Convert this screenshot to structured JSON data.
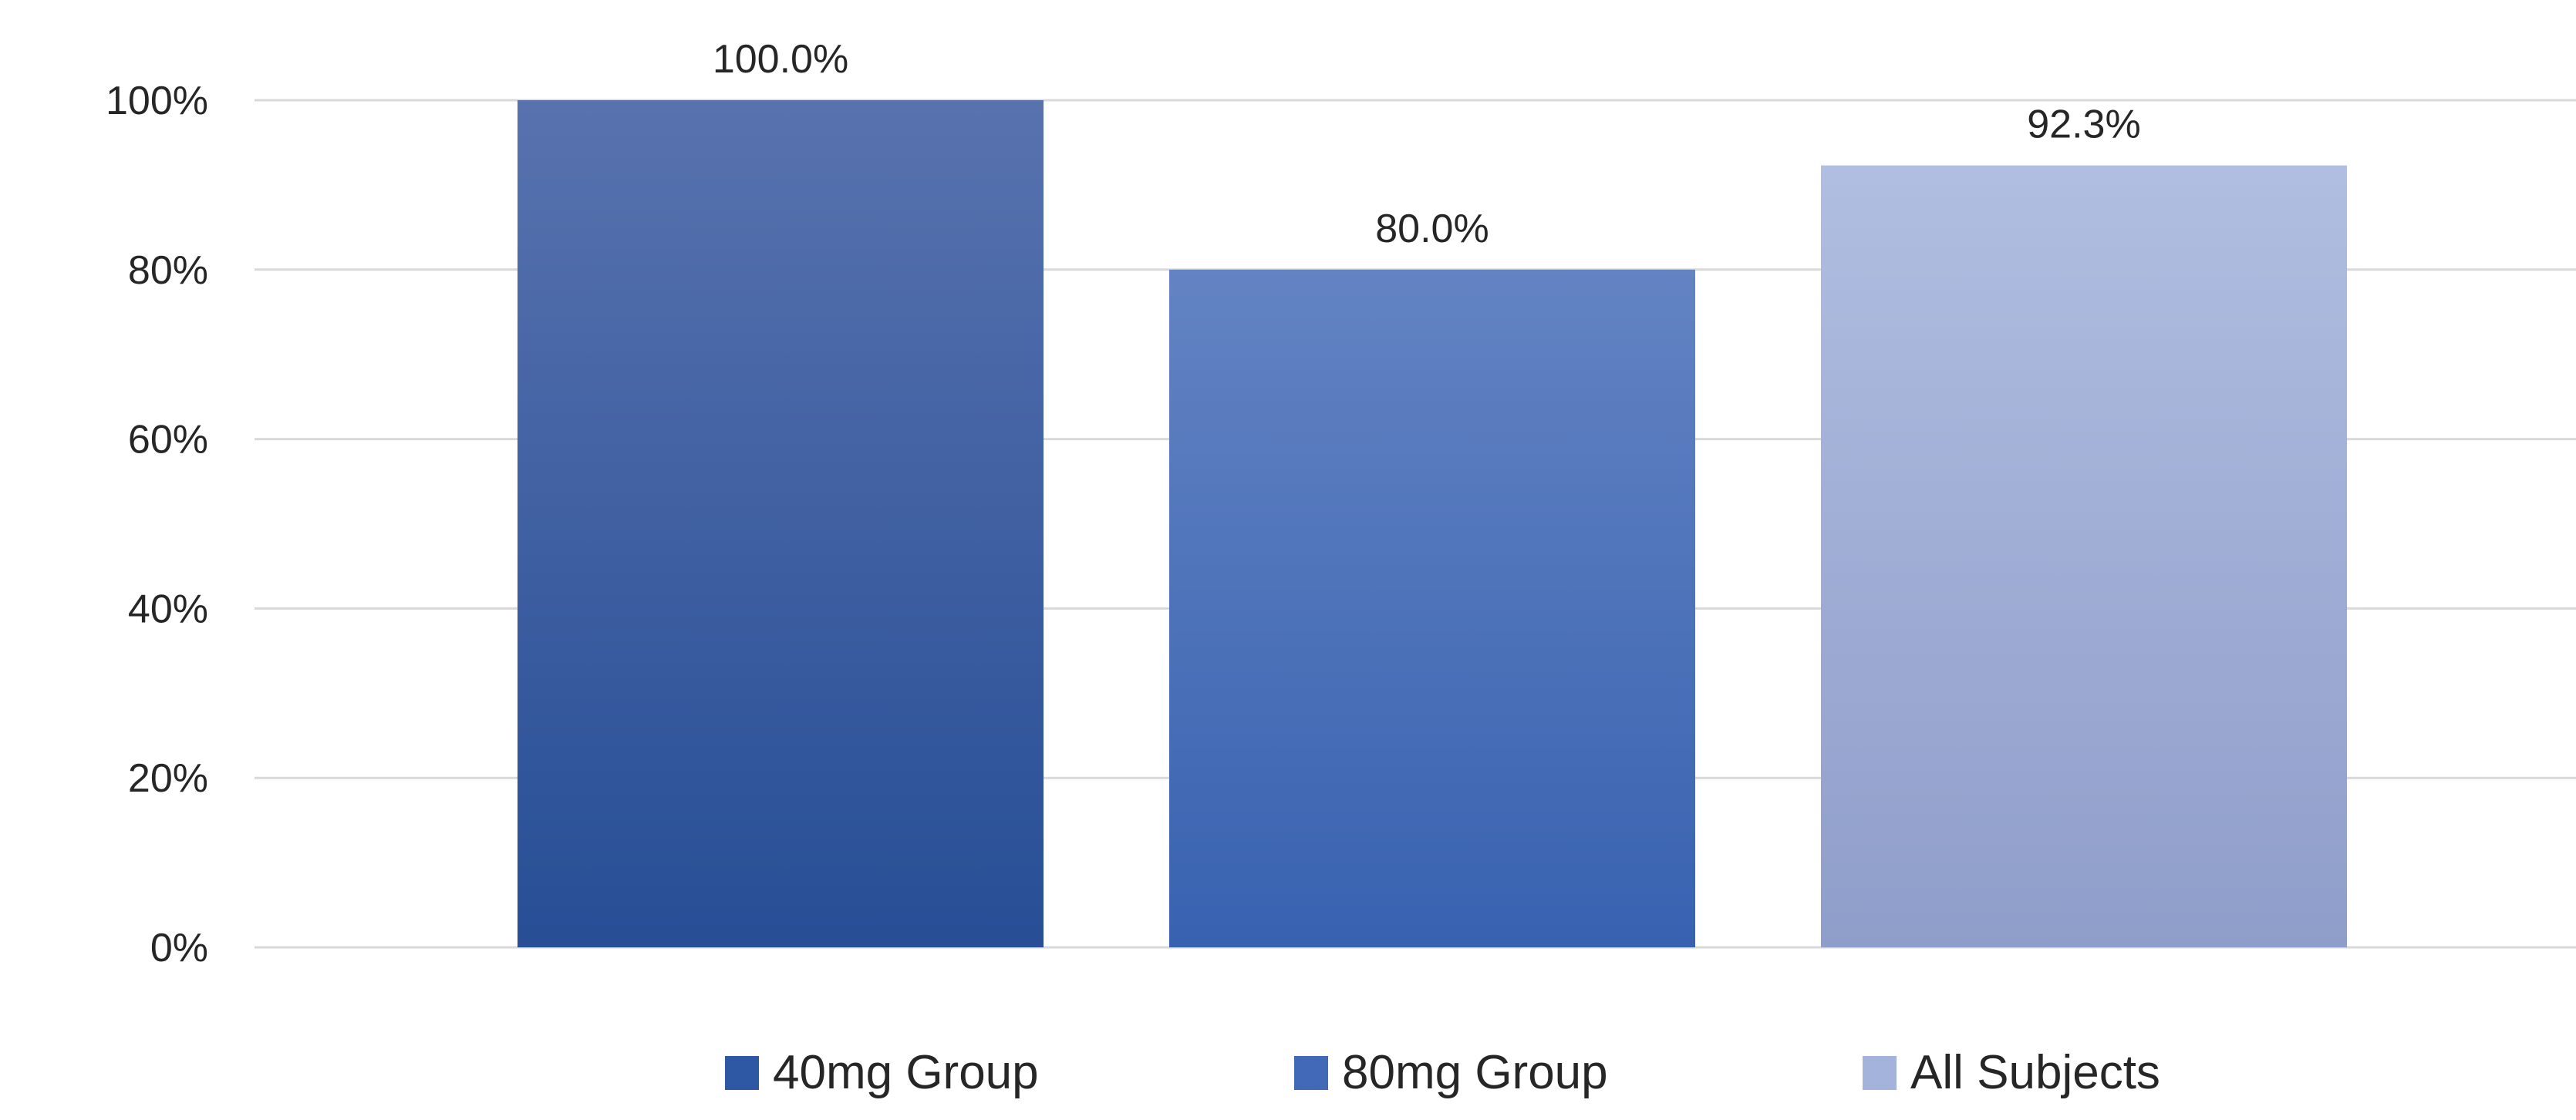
{
  "chart_data": {
    "type": "bar",
    "categories": [
      "40mg Group",
      "80mg Group",
      "All Subjects"
    ],
    "values": [
      100.0,
      80.0,
      92.3
    ],
    "data_labels": [
      "100.0%",
      "80.0%",
      "92.3%"
    ],
    "title": "",
    "xlabel": "",
    "ylabel": "",
    "ylim": [
      0,
      100
    ],
    "yticks": [
      0,
      20,
      40,
      60,
      80,
      100
    ],
    "ytick_labels": [
      "0%",
      "20%",
      "40%",
      "60%",
      "80%",
      "100%"
    ],
    "grid": true,
    "legend": "bottom",
    "colors": [
      {
        "top": "#5872ae",
        "bottom": "#274e96"
      },
      {
        "top": "#6383c3",
        "bottom": "#3862b0"
      },
      {
        "top": "#b0bee1",
        "bottom": "#8f9dca"
      }
    ],
    "legend_colors": [
      "#2f58a4",
      "#4169b7",
      "#a4b3dc"
    ]
  }
}
